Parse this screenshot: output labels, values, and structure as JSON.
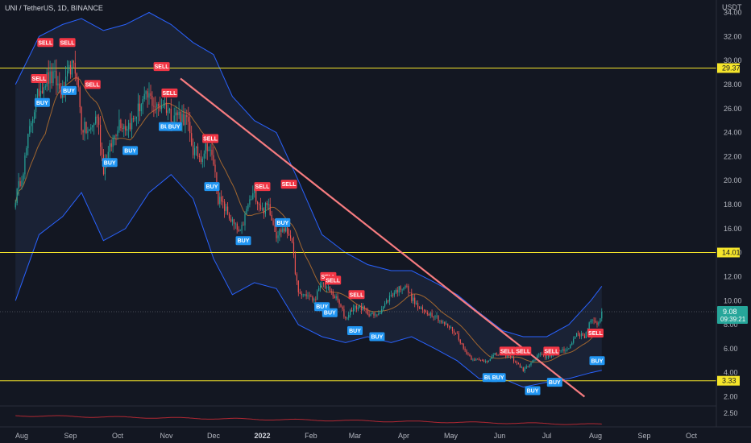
{
  "header": {
    "symbol_title": "UNI / TetherUS, 1D, BINANCE"
  },
  "price_axis": {
    "currency": "USDT",
    "ticks": [
      "34.00",
      "32.00",
      "30.00",
      "28.00",
      "26.00",
      "24.00",
      "22.00",
      "20.00",
      "18.00",
      "16.00",
      "14.00",
      "12.00",
      "10.00",
      "8.00",
      "6.00",
      "4.00",
      "2.00"
    ],
    "tick_values": [
      34,
      32,
      30,
      28,
      26,
      24,
      22,
      20,
      18,
      16,
      14,
      12,
      10,
      8,
      6,
      4,
      2
    ]
  },
  "indicator_axis": {
    "ticks": [
      "2.50"
    ]
  },
  "time_axis": {
    "labels": [
      "Aug",
      "Sep",
      "Oct",
      "Nov",
      "Dec",
      "2022",
      "Feb",
      "Mar",
      "Apr",
      "May",
      "Jun",
      "Jul",
      "Aug",
      "Sep",
      "Oct"
    ]
  },
  "horizontal_levels": [
    {
      "label": "29.37",
      "price": 29.37
    },
    {
      "label": "14.01",
      "price": 14.01
    },
    {
      "label": "3.33",
      "price": 3.33
    }
  ],
  "current_price": {
    "label": "9.08",
    "countdown": "09:39:21",
    "price": 9.08
  },
  "colors": {
    "background": "#131722",
    "bull": "#26a69a",
    "bear": "#ef5350",
    "band": "#2962ff",
    "level": "#f5e52b",
    "trendline": "#f77c80",
    "ma": "#a1662f",
    "buy": "#2196f3",
    "sell": "#f23645",
    "price_badge": "#26a69a"
  },
  "chart_data": {
    "type": "candlestick",
    "title": "UNI / TetherUS, 1D, BINANCE",
    "y_unit": "USDT",
    "ylim": [
      1.0,
      35.0
    ],
    "y_scale": "linear",
    "grid": false,
    "x_range": [
      "2021-07-28",
      "2022-10-28"
    ],
    "anchor_closes": [
      [
        "2021-07-28",
        18.5
      ],
      [
        "2021-08-02",
        21.0
      ],
      [
        "2021-08-07",
        25.0
      ],
      [
        "2021-08-12",
        27.5
      ],
      [
        "2021-08-17",
        28.5
      ],
      [
        "2021-08-22",
        28.5
      ],
      [
        "2021-08-27",
        27.0
      ],
      [
        "2021-09-01",
        29.5
      ],
      [
        "2021-09-05",
        29.0
      ],
      [
        "2021-09-08",
        24.5
      ],
      [
        "2021-09-13",
        24.0
      ],
      [
        "2021-09-18",
        25.5
      ],
      [
        "2021-09-22",
        21.0
      ],
      [
        "2021-09-27",
        23.0
      ],
      [
        "2021-10-02",
        25.0
      ],
      [
        "2021-10-06",
        24.5
      ],
      [
        "2021-10-11",
        25.0
      ],
      [
        "2021-10-16",
        26.5
      ],
      [
        "2021-10-21",
        27.0
      ],
      [
        "2021-10-26",
        26.0
      ],
      [
        "2021-10-30",
        26.5
      ],
      [
        "2021-11-04",
        25.5
      ],
      [
        "2021-11-09",
        25.5
      ],
      [
        "2021-11-14",
        25.0
      ],
      [
        "2021-11-18",
        22.5
      ],
      [
        "2021-11-23",
        22.0
      ],
      [
        "2021-11-27",
        23.0
      ],
      [
        "2021-12-01",
        21.5
      ],
      [
        "2021-12-04",
        18.5
      ],
      [
        "2021-12-09",
        17.5
      ],
      [
        "2021-12-13",
        16.5
      ],
      [
        "2021-12-18",
        15.5
      ],
      [
        "2021-12-23",
        18.0
      ],
      [
        "2021-12-27",
        19.0
      ],
      [
        "2022-01-01",
        17.5
      ],
      [
        "2022-01-05",
        18.0
      ],
      [
        "2022-01-10",
        15.5
      ],
      [
        "2022-01-14",
        16.0
      ],
      [
        "2022-01-19",
        15.5
      ],
      [
        "2022-01-24",
        10.5
      ],
      [
        "2022-01-29",
        10.5
      ],
      [
        "2022-02-03",
        10.0
      ],
      [
        "2022-02-08",
        11.5
      ],
      [
        "2022-02-13",
        10.8
      ],
      [
        "2022-02-18",
        10.0
      ],
      [
        "2022-02-23",
        8.5
      ],
      [
        "2022-02-27",
        9.3
      ],
      [
        "2022-03-04",
        9.5
      ],
      [
        "2022-03-09",
        9.0
      ],
      [
        "2022-03-14",
        8.7
      ],
      [
        "2022-03-19",
        9.5
      ],
      [
        "2022-03-24",
        10.5
      ],
      [
        "2022-03-29",
        11.0
      ],
      [
        "2022-04-02",
        11.3
      ],
      [
        "2022-04-06",
        10.2
      ],
      [
        "2022-04-11",
        9.3
      ],
      [
        "2022-04-16",
        9.0
      ],
      [
        "2022-04-21",
        8.8
      ],
      [
        "2022-04-25",
        8.2
      ],
      [
        "2022-04-30",
        7.8
      ],
      [
        "2022-05-05",
        7.2
      ],
      [
        "2022-05-09",
        6.0
      ],
      [
        "2022-05-14",
        5.2
      ],
      [
        "2022-05-19",
        5.0
      ],
      [
        "2022-05-24",
        5.0
      ],
      [
        "2022-05-29",
        5.5
      ],
      [
        "2022-06-03",
        5.5
      ],
      [
        "2022-06-08",
        5.3
      ],
      [
        "2022-06-12",
        4.8
      ],
      [
        "2022-06-16",
        4.2
      ],
      [
        "2022-06-21",
        4.8
      ],
      [
        "2022-06-26",
        5.5
      ],
      [
        "2022-07-01",
        5.3
      ],
      [
        "2022-07-05",
        5.6
      ],
      [
        "2022-07-10",
        5.9
      ],
      [
        "2022-07-15",
        6.0
      ],
      [
        "2022-07-20",
        7.3
      ],
      [
        "2022-07-25",
        7.0
      ],
      [
        "2022-07-29",
        8.4
      ],
      [
        "2022-08-02",
        7.9
      ],
      [
        "2022-08-05",
        9.08
      ]
    ],
    "upper_band": [
      [
        "2021-07-28",
        28.0
      ],
      [
        "2021-08-12",
        32.0
      ],
      [
        "2021-08-27",
        33.0
      ],
      [
        "2021-09-08",
        33.5
      ],
      [
        "2021-09-22",
        32.5
      ],
      [
        "2021-10-06",
        33.0
      ],
      [
        "2021-10-21",
        34.0
      ],
      [
        "2021-11-04",
        33.0
      ],
      [
        "2021-11-18",
        31.5
      ],
      [
        "2021-12-01",
        30.5
      ],
      [
        "2021-12-13",
        27.0
      ],
      [
        "2021-12-27",
        25.0
      ],
      [
        "2022-01-10",
        24.0
      ],
      [
        "2022-01-24",
        20.0
      ],
      [
        "2022-02-08",
        15.5
      ],
      [
        "2022-02-23",
        14.0
      ],
      [
        "2022-03-09",
        13.0
      ],
      [
        "2022-03-24",
        12.5
      ],
      [
        "2022-04-06",
        12.5
      ],
      [
        "2022-04-21",
        11.5
      ],
      [
        "2022-05-05",
        10.5
      ],
      [
        "2022-05-19",
        9.0
      ],
      [
        "2022-06-03",
        7.5
      ],
      [
        "2022-06-16",
        7.0
      ],
      [
        "2022-07-01",
        7.0
      ],
      [
        "2022-07-15",
        8.0
      ],
      [
        "2022-07-29",
        10.0
      ],
      [
        "2022-08-05",
        11.2
      ]
    ],
    "lower_band": [
      [
        "2021-07-28",
        10.0
      ],
      [
        "2021-08-12",
        15.5
      ],
      [
        "2021-08-27",
        17.0
      ],
      [
        "2021-09-08",
        19.0
      ],
      [
        "2021-09-22",
        15.0
      ],
      [
        "2021-10-06",
        16.0
      ],
      [
        "2021-10-21",
        19.0
      ],
      [
        "2021-11-04",
        20.5
      ],
      [
        "2021-11-18",
        18.5
      ],
      [
        "2021-12-01",
        13.5
      ],
      [
        "2021-12-13",
        10.5
      ],
      [
        "2021-12-27",
        11.5
      ],
      [
        "2022-01-10",
        11.0
      ],
      [
        "2022-01-24",
        8.0
      ],
      [
        "2022-02-08",
        7.0
      ],
      [
        "2022-02-23",
        6.5
      ],
      [
        "2022-03-09",
        7.0
      ],
      [
        "2022-03-24",
        6.5
      ],
      [
        "2022-04-06",
        7.0
      ],
      [
        "2022-04-21",
        6.0
      ],
      [
        "2022-05-05",
        5.0
      ],
      [
        "2022-05-19",
        3.5
      ],
      [
        "2022-06-03",
        3.5
      ],
      [
        "2022-06-16",
        2.8
      ],
      [
        "2022-07-01",
        3.2
      ],
      [
        "2022-07-15",
        3.5
      ],
      [
        "2022-07-29",
        4.0
      ],
      [
        "2022-08-05",
        4.2
      ]
    ],
    "trendline": {
      "from": [
        "2021-11-10",
        28.5
      ],
      "to": [
        "2022-07-25",
        2.0
      ]
    },
    "signals": [
      {
        "type": "SELL",
        "date": "2021-08-16",
        "price": 31.5
      },
      {
        "type": "SELL",
        "date": "2021-08-12",
        "price": 28.5
      },
      {
        "type": "BUY",
        "date": "2021-08-14",
        "price": 26.5
      },
      {
        "type": "SELL",
        "date": "2021-08-30",
        "price": 31.5
      },
      {
        "type": "BUY",
        "date": "2021-08-31",
        "price": 27.5
      },
      {
        "type": "SELL",
        "date": "2021-09-15",
        "price": 28.0
      },
      {
        "type": "BUY",
        "date": "2021-09-26",
        "price": 21.5
      },
      {
        "type": "BUY",
        "date": "2021-10-09",
        "price": 22.5
      },
      {
        "type": "SELL",
        "date": "2021-10-29",
        "price": 29.5
      },
      {
        "type": "SELL",
        "date": "2021-11-03",
        "price": 27.3
      },
      {
        "type": "BUY",
        "date": "2021-11-01",
        "price": 24.5
      },
      {
        "type": "BUY",
        "date": "2021-11-06",
        "price": 24.5
      },
      {
        "type": "SELL",
        "date": "2021-11-29",
        "price": 23.5
      },
      {
        "type": "BUY",
        "date": "2021-11-30",
        "price": 19.5
      },
      {
        "type": "BUY",
        "date": "2021-12-20",
        "price": 15.0
      },
      {
        "type": "SELL",
        "date": "2022-01-01",
        "price": 19.5
      },
      {
        "type": "SELL",
        "date": "2022-01-18",
        "price": 19.7
      },
      {
        "type": "BUY",
        "date": "2022-01-14",
        "price": 16.5
      },
      {
        "type": "SELL",
        "date": "2022-02-12",
        "price": 12.0
      },
      {
        "type": "SELL",
        "date": "2022-02-15",
        "price": 11.7
      },
      {
        "type": "BUY",
        "date": "2022-02-08",
        "price": 9.5
      },
      {
        "type": "BUY",
        "date": "2022-02-13",
        "price": 9.0
      },
      {
        "type": "SELL",
        "date": "2022-03-02",
        "price": 10.5
      },
      {
        "type": "BUY",
        "date": "2022-03-01",
        "price": 7.5
      },
      {
        "type": "BUY",
        "date": "2022-03-15",
        "price": 7.0
      },
      {
        "type": "SELL",
        "date": "2022-06-06",
        "price": 5.8
      },
      {
        "type": "BUY",
        "date": "2022-05-26",
        "price": 3.6
      },
      {
        "type": "BUY",
        "date": "2022-05-31",
        "price": 3.6
      },
      {
        "type": "SELL",
        "date": "2022-06-16",
        "price": 5.8
      },
      {
        "type": "BUY",
        "date": "2022-06-22",
        "price": 2.5
      },
      {
        "type": "SELL",
        "date": "2022-07-04",
        "price": 5.8
      },
      {
        "type": "BUY",
        "date": "2022-07-06",
        "price": 3.2
      },
      {
        "type": "SELL",
        "date": "2022-08-01",
        "price": 7.3
      },
      {
        "type": "BUY",
        "date": "2022-08-02",
        "price": 5.0
      }
    ]
  }
}
